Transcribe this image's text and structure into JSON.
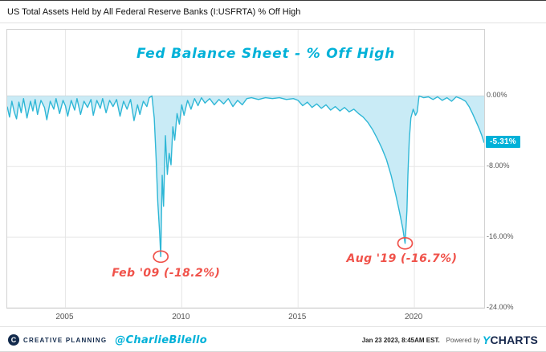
{
  "header": {
    "title": "US Total Assets Held by All Federal Reserve Banks (I:USFRTA) % Off High"
  },
  "chart_data": {
    "type": "area",
    "title": "US Total Assets Held by All Federal Reserve Banks (I:USFRTA) % Off High",
    "xlabel": "",
    "ylabel": "",
    "x_range": [
      2002.5,
      2023.0
    ],
    "ylim": [
      -24,
      7.5
    ],
    "grid": true,
    "legend": "none",
    "line_color": "#2fb7d6",
    "fill_color": "#c9ebf6",
    "accent_cyan": "#00b1d8",
    "callout_red": "#f0524a",
    "last_value": -5.31,
    "last_value_label": "-5.31%",
    "y_ticks": [
      {
        "value": 0,
        "label": "0.00%"
      },
      {
        "value": -8,
        "label": "-8.00%"
      },
      {
        "value": -16,
        "label": "-16.00%"
      },
      {
        "value": -24,
        "label": "-24.00%"
      }
    ],
    "x_ticks": [
      {
        "value": 2005,
        "label": "2005"
      },
      {
        "value": 2010,
        "label": "2010"
      },
      {
        "value": 2015,
        "label": "2015"
      },
      {
        "value": 2020,
        "label": "2020"
      }
    ],
    "annotations": {
      "chart_title": {
        "text": "Fed Balance Sheet - % Off High",
        "color": "#00b1d8"
      },
      "callouts": [
        {
          "text": "Feb '09 (-18.2%)",
          "x": 2009.1,
          "y": -18.2,
          "color": "#f0524a",
          "label_offset": [
            -60,
            14
          ]
        },
        {
          "text": "Aug '19 (-16.7%)",
          "x": 2019.6,
          "y": -16.7,
          "color": "#f0524a",
          "label_offset": [
            -72,
            12
          ]
        }
      ]
    },
    "points": [
      [
        2002.5,
        -1.2
      ],
      [
        2002.6,
        -2.4
      ],
      [
        2002.7,
        -0.6
      ],
      [
        2002.8,
        -1.8
      ],
      [
        2002.9,
        -2.6
      ],
      [
        2003.0,
        -0.7
      ],
      [
        2003.1,
        -1.9
      ],
      [
        2003.2,
        -0.3
      ],
      [
        2003.35,
        -2.5
      ],
      [
        2003.5,
        -0.6
      ],
      [
        2003.6,
        -1.7
      ],
      [
        2003.7,
        -0.4
      ],
      [
        2003.8,
        -2.1
      ],
      [
        2003.95,
        -0.5
      ],
      [
        2004.1,
        -1.3
      ],
      [
        2004.2,
        -2.7
      ],
      [
        2004.35,
        -0.6
      ],
      [
        2004.5,
        -1.5
      ],
      [
        2004.6,
        -0.3
      ],
      [
        2004.75,
        -2.0
      ],
      [
        2004.9,
        -0.5
      ],
      [
        2005.0,
        -1.1
      ],
      [
        2005.1,
        -2.3
      ],
      [
        2005.25,
        -0.5
      ],
      [
        2005.4,
        -1.6
      ],
      [
        2005.5,
        -0.3
      ],
      [
        2005.65,
        -2.1
      ],
      [
        2005.8,
        -0.6
      ],
      [
        2005.95,
        -1.3
      ],
      [
        2006.1,
        -0.4
      ],
      [
        2006.2,
        -2.2
      ],
      [
        2006.35,
        -0.5
      ],
      [
        2006.5,
        -1.4
      ],
      [
        2006.6,
        -0.3
      ],
      [
        2006.75,
        -1.9
      ],
      [
        2006.9,
        -0.5
      ],
      [
        2007.05,
        -1.2
      ],
      [
        2007.2,
        -0.4
      ],
      [
        2007.35,
        -2.3
      ],
      [
        2007.5,
        -0.6
      ],
      [
        2007.65,
        -1.5
      ],
      [
        2007.8,
        -0.4
      ],
      [
        2007.95,
        -2.8
      ],
      [
        2008.1,
        -1.0
      ],
      [
        2008.2,
        -2.1
      ],
      [
        2008.35,
        -0.6
      ],
      [
        2008.5,
        -1.2
      ],
      [
        2008.6,
        -0.2
      ],
      [
        2008.72,
        0.0
      ],
      [
        2008.82,
        -2.5
      ],
      [
        2008.9,
        -7.0
      ],
      [
        2008.97,
        -12.0
      ],
      [
        2009.05,
        -15.5
      ],
      [
        2009.1,
        -18.2
      ],
      [
        2009.16,
        -9.0
      ],
      [
        2009.22,
        -12.5
      ],
      [
        2009.3,
        -4.5
      ],
      [
        2009.38,
        -8.9
      ],
      [
        2009.46,
        -6.5
      ],
      [
        2009.54,
        -7.8
      ],
      [
        2009.62,
        -3.5
      ],
      [
        2009.7,
        -5.0
      ],
      [
        2009.8,
        -2.0
      ],
      [
        2009.9,
        -3.2
      ],
      [
        2010.0,
        -1.0
      ],
      [
        2010.1,
        -2.2
      ],
      [
        2010.25,
        -0.5
      ],
      [
        2010.4,
        -1.5
      ],
      [
        2010.55,
        -0.3
      ],
      [
        2010.7,
        -1.1
      ],
      [
        2010.85,
        -0.2
      ],
      [
        2011.0,
        -0.8
      ],
      [
        2011.2,
        -0.3
      ],
      [
        2011.4,
        -1.0
      ],
      [
        2011.6,
        -0.4
      ],
      [
        2011.8,
        -0.9
      ],
      [
        2012.0,
        -0.3
      ],
      [
        2012.2,
        -1.2
      ],
      [
        2012.4,
        -0.5
      ],
      [
        2012.6,
        -1.0
      ],
      [
        2012.8,
        -0.3
      ],
      [
        2013.0,
        -0.2
      ],
      [
        2013.3,
        -0.4
      ],
      [
        2013.6,
        -0.2
      ],
      [
        2013.9,
        -0.3
      ],
      [
        2014.2,
        -0.2
      ],
      [
        2014.5,
        -0.4
      ],
      [
        2014.8,
        -0.3
      ],
      [
        2015.0,
        -0.5
      ],
      [
        2015.2,
        -1.1
      ],
      [
        2015.4,
        -0.7
      ],
      [
        2015.6,
        -1.3
      ],
      [
        2015.8,
        -0.9
      ],
      [
        2016.0,
        -1.4
      ],
      [
        2016.2,
        -1.0
      ],
      [
        2016.4,
        -1.6
      ],
      [
        2016.6,
        -1.2
      ],
      [
        2016.8,
        -1.7
      ],
      [
        2017.0,
        -1.3
      ],
      [
        2017.2,
        -1.8
      ],
      [
        2017.4,
        -1.5
      ],
      [
        2017.6,
        -2.0
      ],
      [
        2017.8,
        -2.4
      ],
      [
        2018.0,
        -3.0
      ],
      [
        2018.2,
        -3.8
      ],
      [
        2018.4,
        -4.8
      ],
      [
        2018.6,
        -5.9
      ],
      [
        2018.8,
        -7.2
      ],
      [
        2019.0,
        -9.0
      ],
      [
        2019.2,
        -11.2
      ],
      [
        2019.35,
        -13.0
      ],
      [
        2019.5,
        -15.0
      ],
      [
        2019.6,
        -16.7
      ],
      [
        2019.68,
        -13.0
      ],
      [
        2019.72,
        -9.0
      ],
      [
        2019.78,
        -5.0
      ],
      [
        2019.85,
        -2.5
      ],
      [
        2019.95,
        -1.5
      ],
      [
        2020.05,
        -2.2
      ],
      [
        2020.12,
        -1.8
      ],
      [
        2020.2,
        0.0
      ],
      [
        2020.4,
        -0.2
      ],
      [
        2020.6,
        -0.1
      ],
      [
        2020.8,
        -0.4
      ],
      [
        2021.0,
        -0.1
      ],
      [
        2021.2,
        -0.5
      ],
      [
        2021.4,
        -0.2
      ],
      [
        2021.6,
        -0.6
      ],
      [
        2021.8,
        -0.1
      ],
      [
        2022.0,
        -0.3
      ],
      [
        2022.2,
        -0.6
      ],
      [
        2022.35,
        -1.2
      ],
      [
        2022.5,
        -2.0
      ],
      [
        2022.65,
        -2.9
      ],
      [
        2022.8,
        -3.8
      ],
      [
        2022.9,
        -4.5
      ],
      [
        2023.0,
        -5.31
      ]
    ]
  },
  "footer": {
    "brand_mark": "C",
    "brand": "CREATIVE PLANNING",
    "handle": "@CharlieBilello",
    "timestamp": "Jan 23 2023, 8:45AM EST.",
    "powered_by": "Powered by",
    "ycharts_y": "Y",
    "ycharts_rest": "CHARTS"
  }
}
